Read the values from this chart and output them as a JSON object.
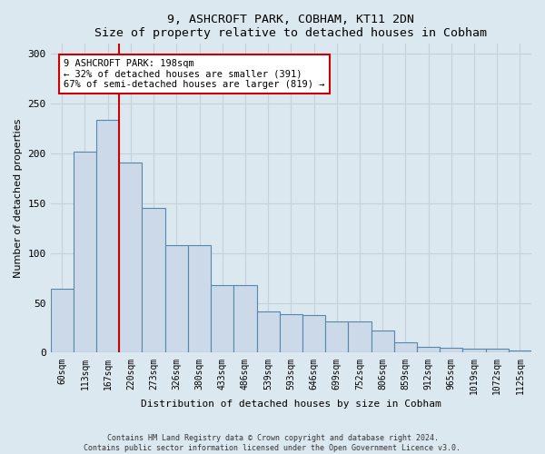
{
  "title": "9, ASHCROFT PARK, COBHAM, KT11 2DN",
  "subtitle": "Size of property relative to detached houses in Cobham",
  "xlabel": "Distribution of detached houses by size in Cobham",
  "ylabel": "Number of detached properties",
  "categories": [
    "60sqm",
    "113sqm",
    "167sqm",
    "220sqm",
    "273sqm",
    "326sqm",
    "380sqm",
    "433sqm",
    "486sqm",
    "539sqm",
    "593sqm",
    "646sqm",
    "699sqm",
    "752sqm",
    "806sqm",
    "859sqm",
    "912sqm",
    "965sqm",
    "1019sqm",
    "1072sqm",
    "1125sqm"
  ],
  "values": [
    64,
    202,
    234,
    191,
    145,
    108,
    108,
    68,
    68,
    41,
    39,
    38,
    31,
    31,
    22,
    10,
    6,
    5,
    4,
    4,
    2
  ],
  "bar_color": "#ccd9e8",
  "bar_edge_color": "#5588aa",
  "property_line_x": 2.5,
  "annotation_text": "9 ASHCROFT PARK: 198sqm\n← 32% of detached houses are smaller (391)\n67% of semi-detached houses are larger (819) →",
  "annotation_box_color": "#ffffff",
  "annotation_box_edge": "#cc0000",
  "line_color": "#cc0000",
  "footer1": "Contains HM Land Registry data © Crown copyright and database right 2024.",
  "footer2": "Contains public sector information licensed under the Open Government Licence v3.0.",
  "ylim": [
    0,
    310
  ],
  "yticks": [
    0,
    50,
    100,
    150,
    200,
    250,
    300
  ],
  "grid_color": "#c8d0dc",
  "bg_color": "#dce8f0"
}
